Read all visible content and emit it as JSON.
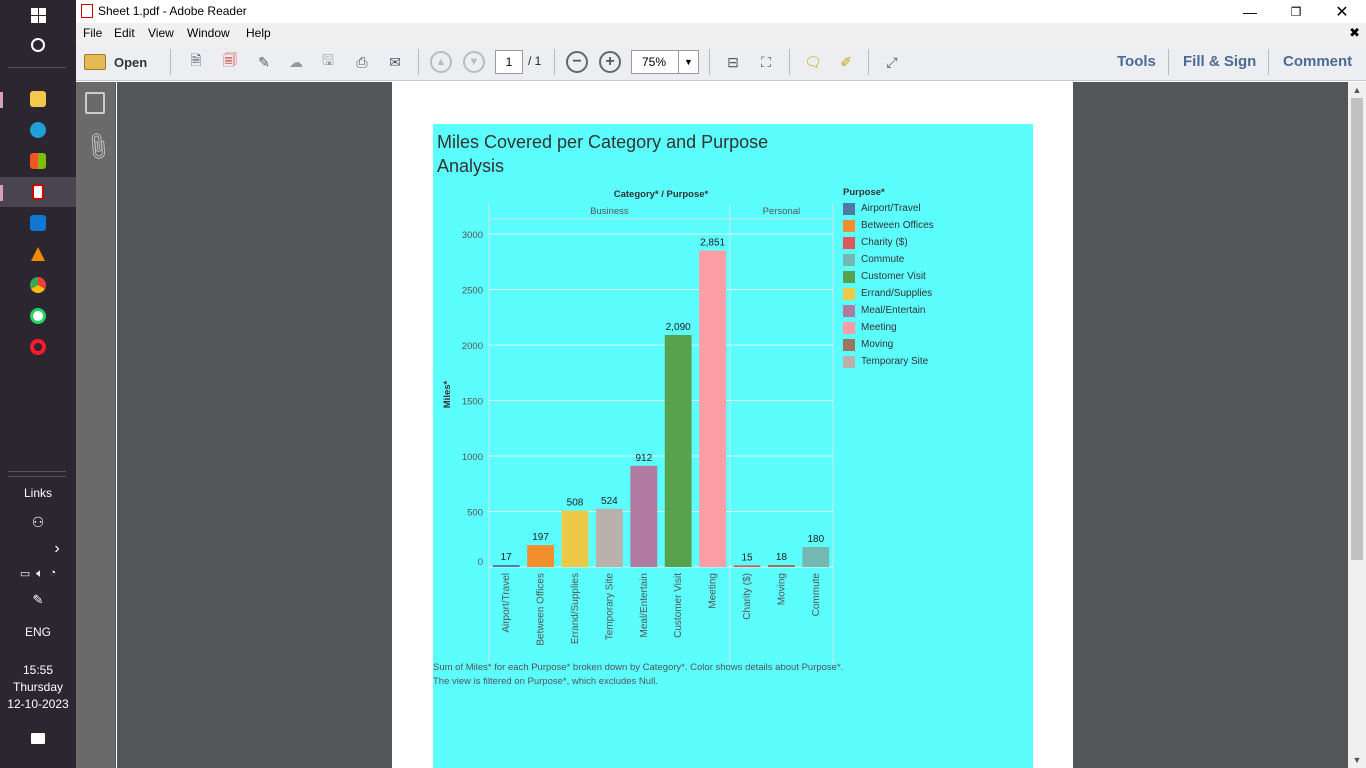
{
  "window": {
    "title": "Sheet 1.pdf - Adobe Reader"
  },
  "menu": [
    "File",
    "Edit",
    "View",
    "Window",
    "Help"
  ],
  "toolbar": {
    "open_label": "Open",
    "page_current": "1",
    "page_total": "/ 1",
    "zoom": "75%",
    "tools_label": "Tools",
    "fill_sign_label": "Fill & Sign",
    "comment_label": "Comment"
  },
  "taskbar": {
    "links_label": "Links",
    "lang": "ENG",
    "time": "15:55",
    "day": "Thursday",
    "date": "12-10-2023"
  },
  "chart_data": {
    "type": "bar",
    "title": "Miles Covered per Category and Purpose Analysis",
    "header": "Category* / Purpose*",
    "groups": [
      {
        "name": "Business",
        "categories": [
          "Airport/Travel",
          "Between Offices",
          "Errand/Supplies",
          "Temporary Site",
          "Meal/Entertain",
          "Customer Visit",
          "Meeting"
        ]
      },
      {
        "name": "Personal",
        "categories": [
          "Charity ($)",
          "Moving",
          "Commute"
        ]
      }
    ],
    "categories": [
      "Airport/Travel",
      "Between Offices",
      "Errand/Supplies",
      "Temporary Site",
      "Meal/Entertain",
      "Customer Visit",
      "Meeting",
      "Charity ($)",
      "Moving",
      "Commute"
    ],
    "values": [
      17,
      197,
      508,
      524,
      912,
      2090,
      2851,
      15,
      18,
      180
    ],
    "value_labels": [
      "17",
      "197",
      "508",
      "524",
      "912",
      "2,090",
      "2,851",
      "15",
      "18",
      "180"
    ],
    "ylabel": "Miles*",
    "ylim": [
      0,
      3000
    ],
    "yticks": [
      0,
      500,
      1000,
      1500,
      2000,
      2500,
      3000
    ],
    "grid": true,
    "legend": {
      "title": "Purpose*",
      "placement": "right",
      "items": [
        {
          "name": "Airport/Travel",
          "color": "#4e79a7"
        },
        {
          "name": "Between Offices",
          "color": "#f28e2b"
        },
        {
          "name": "Charity ($)",
          "color": "#e15759"
        },
        {
          "name": "Commute",
          "color": "#76b7b2"
        },
        {
          "name": "Customer Visit",
          "color": "#59a14f"
        },
        {
          "name": "Errand/Supplies",
          "color": "#edc948"
        },
        {
          "name": "Meal/Entertain",
          "color": "#b07aa1"
        },
        {
          "name": "Meeting",
          "color": "#ff9da7"
        },
        {
          "name": "Moving",
          "color": "#9c755f"
        },
        {
          "name": "Temporary Site",
          "color": "#bab0ac"
        }
      ]
    },
    "caption": "Sum of Miles* for each Purpose* broken down by Category*.  Color shows details about Purpose*. The view is filtered on Purpose*, which excludes Null."
  }
}
